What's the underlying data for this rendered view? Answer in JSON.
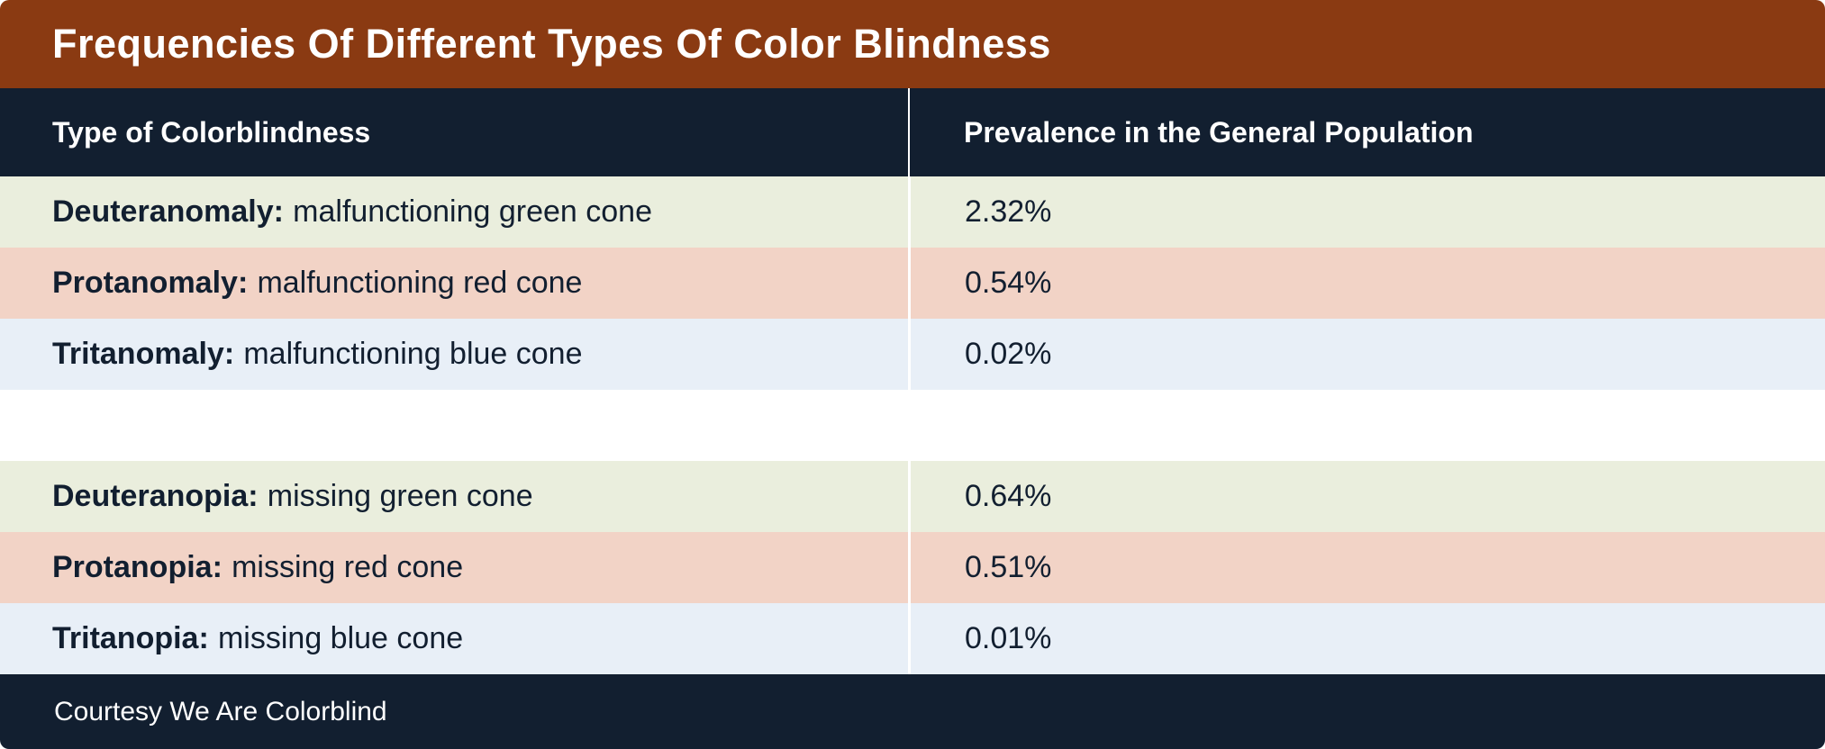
{
  "table": {
    "title": "Frequencies Of Different Types Of Color Blindness",
    "columns": [
      "Type of Colorblindness",
      "Prevalence in the General Population"
    ],
    "rows": [
      {
        "term": "Deuteranomaly:",
        "desc": "malfunctioning green cone",
        "value": "2.32%",
        "tint": "green"
      },
      {
        "term": "Protanomaly:",
        "desc": "malfunctioning red cone",
        "value": "0.54%",
        "tint": "pink"
      },
      {
        "term": "Tritanomaly:",
        "desc": "malfunctioning blue cone",
        "value": "0.02%",
        "tint": "blue"
      },
      {
        "term": "",
        "desc": "",
        "value": "",
        "tint": "white"
      },
      {
        "term": "Deuteranopia:",
        "desc": "missing green cone",
        "value": "0.64%",
        "tint": "green"
      },
      {
        "term": "Protanopia:",
        "desc": "missing red cone",
        "value": "0.51%",
        "tint": "pink"
      },
      {
        "term": "Tritanopia:",
        "desc": "missing blue cone",
        "value": "0.01%",
        "tint": "blue"
      }
    ],
    "footer": "Courtesy We Are Colorblind"
  },
  "colors": {
    "title_bar": "#8a3a12",
    "header_navy": "#121f30",
    "row_green": "#eaeedd",
    "row_pink": "#f2d3c6",
    "row_blue": "#e8eff7",
    "row_white": "#ffffff",
    "divider": "#ffffff",
    "text_dark": "#121f30",
    "text_light": "#ffffff"
  },
  "chart_data": {
    "type": "table",
    "title": "Frequencies Of Different Types Of Color Blindness",
    "columns": [
      "Type of Colorblindness",
      "Prevalence in the General Population"
    ],
    "categories": [
      "Deuteranomaly",
      "Protanomaly",
      "Tritanomaly",
      "Deuteranopia",
      "Protanopia",
      "Tritanopia"
    ],
    "descriptions": [
      "malfunctioning green cone",
      "malfunctioning red cone",
      "malfunctioning blue cone",
      "missing green cone",
      "missing red cone",
      "missing blue cone"
    ],
    "values_percent": [
      2.32,
      0.54,
      0.02,
      0.64,
      0.51,
      0.01
    ],
    "groups": [
      "anomaly",
      "anomaly",
      "anomaly",
      "anopia",
      "anopia",
      "anopia"
    ],
    "source": "Courtesy We Are Colorblind"
  }
}
